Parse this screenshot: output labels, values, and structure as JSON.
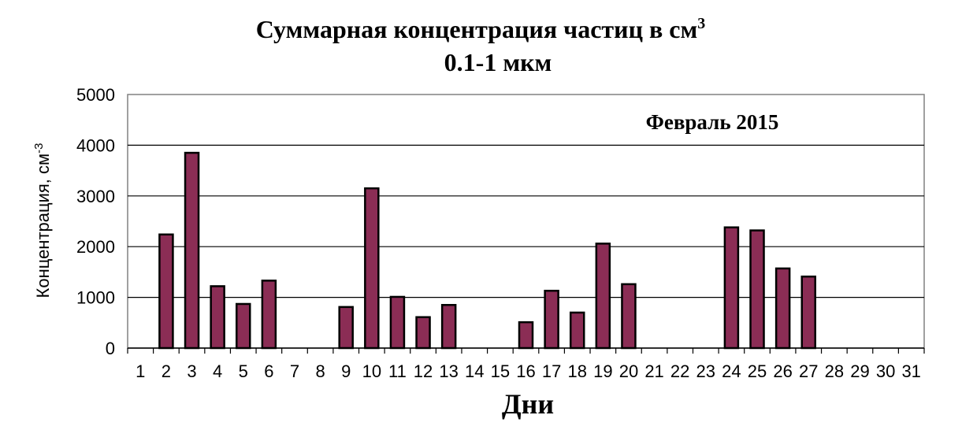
{
  "chart_data": {
    "type": "bar",
    "title": "Суммарная концентрация частиц  в см",
    "title_superscript": "3",
    "subtitle": "0.1-1 мкм",
    "annotation": "Февраль 2015",
    "xlabel": "Дни",
    "ylabel": "Концентрация, см",
    "ylabel_superscript": "-3",
    "ylim": [
      0,
      5000
    ],
    "yticks": [
      0,
      1000,
      2000,
      3000,
      4000,
      5000
    ],
    "grid": true,
    "legend": "none",
    "bar_color": "#8b2d55",
    "categories": [
      "1",
      "2",
      "3",
      "4",
      "5",
      "6",
      "7",
      "8",
      "9",
      "10",
      "11",
      "12",
      "13",
      "14",
      "15",
      "16",
      "17",
      "18",
      "19",
      "20",
      "21",
      "22",
      "23",
      "24",
      "25",
      "26",
      "27",
      "28",
      "29",
      "30",
      "31"
    ],
    "values": [
      0,
      2240,
      3850,
      1220,
      870,
      1330,
      0,
      0,
      810,
      3150,
      1010,
      610,
      850,
      0,
      0,
      510,
      1130,
      700,
      2060,
      1260,
      0,
      0,
      0,
      2380,
      2320,
      1570,
      1410,
      0,
      0,
      0,
      0
    ]
  }
}
